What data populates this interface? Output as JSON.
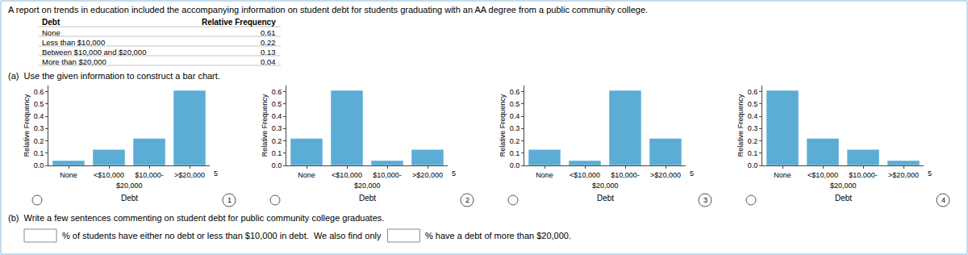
{
  "title": "A report on trends in education included the accompanying information on student debt for students graduating with an AA degree from a public community college.",
  "table": {
    "headers": [
      "Debt",
      "Relative Frequency"
    ],
    "rows": [
      [
        "None",
        "0.61"
      ],
      [
        "Less than $10,000",
        "0.22"
      ],
      [
        "Between $10,000 and $20,000",
        "0.13"
      ],
      [
        "More than $20,000",
        "0.04"
      ]
    ]
  },
  "annotations": [
    "(a)  Use the given information to construct a bar chart.",
    "(b)  Write a few sentences commenting on student debt for public community college graduates.",
    "% of students have either no debt or less than $10,000 in debt.  We also find only",
    "% have a debt of more than $20,000."
  ],
  "chart_data": [
    {
      "type": "bar",
      "categories": [
        "None",
        "<$10,000",
        "$10,000-",
        ">$20,000"
      ],
      "values": [
        0.04,
        0.13,
        0.22,
        0.61
      ],
      "color": "#5BADD6",
      "ylim": [
        0,
        0.65
      ],
      "yticks": [
        {
          "value": 0,
          "label": "0.0"
        },
        0.1,
        0.2,
        0.3,
        0.4,
        0.5,
        0.6
      ],
      "grid": false,
      "xlabel": "Debt",
      "ylabel": "Relative Frequency",
      "annotations": [
        "$20,000",
        "5",
        "1"
      ]
    },
    {
      "type": "bar",
      "categories": [
        "None",
        "<$10,000",
        "$10,000-",
        ">$20,000"
      ],
      "values": [
        0.22,
        0.61,
        0.04,
        0.13
      ],
      "color": "#5BADD6",
      "ylim": [
        0,
        0.65
      ],
      "yticks": [
        {
          "value": 0,
          "label": "0.0"
        },
        0.1,
        0.2,
        0.3,
        0.4,
        0.5,
        0.6
      ],
      "grid": false,
      "xlabel": "Debt",
      "ylabel": "Relative Frequency",
      "annotations": [
        "$20,000",
        "5",
        "2"
      ]
    },
    {
      "type": "bar",
      "categories": [
        "None",
        "<$10,000",
        "$10,000-",
        ">$20,000"
      ],
      "values": [
        0.13,
        0.04,
        0.61,
        0.22
      ],
      "color": "#5BADD6",
      "ylim": [
        0,
        0.65
      ],
      "yticks": [
        {
          "value": 0,
          "label": "0.0"
        },
        0.1,
        0.2,
        0.3,
        0.4,
        0.5,
        0.6
      ],
      "grid": false,
      "xlabel": "Debt",
      "ylabel": "Relative Frequency",
      "annotations": [
        "$20,000",
        "5",
        "3"
      ]
    },
    {
      "type": "bar",
      "categories": [
        "None",
        "<$10,000",
        "$10,000-",
        ">$20,000"
      ],
      "values": [
        0.61,
        0.22,
        0.13,
        0.04
      ],
      "color": "#5BADD6",
      "ylim": [
        0,
        0.65
      ],
      "yticks": [
        {
          "value": 0,
          "label": "0.0"
        },
        0.1,
        0.2,
        0.3,
        0.4,
        0.5,
        0.6
      ],
      "grid": false,
      "xlabel": "Debt",
      "ylabel": "Relative Frequency",
      "annotations": [
        "$20,000",
        "5",
        "4"
      ]
    }
  ]
}
